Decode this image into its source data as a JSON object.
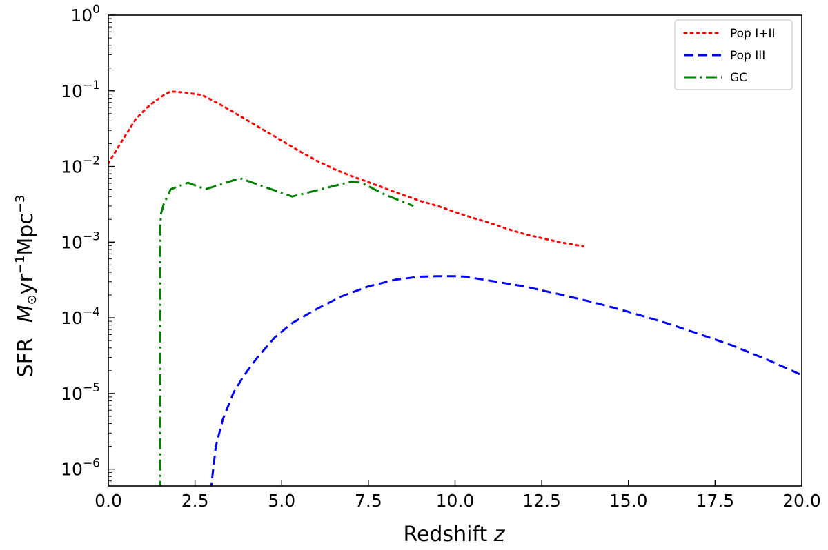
{
  "chart_data": {
    "type": "line",
    "xlabel": "Redshift",
    "xlabel_var": "z",
    "ylabel": "SFR",
    "ylabel_units": {
      "M": "M",
      "sun": "⊙",
      "yr": "yr",
      "yr_exp": "−1",
      "mpc": "Mpc",
      "mpc_exp": "−3"
    },
    "xlim": [
      0,
      20
    ],
    "ylim": [
      6e-07,
      1
    ],
    "yscale": "log",
    "x_ticks": [
      "0.0",
      "2.5",
      "5.0",
      "7.5",
      "10.0",
      "12.5",
      "15.0",
      "17.5",
      "20.0"
    ],
    "y_ticks": [
      {
        "base": "10",
        "exp": "0"
      },
      {
        "base": "10",
        "exp": "−1"
      },
      {
        "base": "10",
        "exp": "−2"
      },
      {
        "base": "10",
        "exp": "−3"
      },
      {
        "base": "10",
        "exp": "−4"
      },
      {
        "base": "10",
        "exp": "−5"
      },
      {
        "base": "10",
        "exp": "−6"
      }
    ],
    "legend_position": "top-right",
    "series": [
      {
        "name": "Pop I+II",
        "color": "#ff0000",
        "style": "dotted",
        "x": [
          0,
          0.4,
          0.8,
          1.2,
          1.6,
          1.8,
          2.2,
          2.7,
          3.0,
          3.5,
          4.0,
          4.5,
          5.0,
          5.5,
          6.0,
          6.5,
          7.0,
          7.5,
          8.0,
          8.5,
          9.0,
          9.5,
          10.0,
          10.5,
          11.0,
          11.5,
          12.0,
          12.5,
          13.0,
          13.7
        ],
        "y": [
          0.011,
          0.022,
          0.043,
          0.065,
          0.088,
          0.098,
          0.095,
          0.088,
          0.075,
          0.056,
          0.041,
          0.03,
          0.022,
          0.016,
          0.012,
          0.0093,
          0.0075,
          0.0062,
          0.0051,
          0.0042,
          0.0035,
          0.003,
          0.0025,
          0.0021,
          0.0018,
          0.0015,
          0.00128,
          0.00113,
          0.001,
          0.00088
        ]
      },
      {
        "name": "Pop III",
        "color": "#0000ff",
        "style": "dashed",
        "x": [
          2.95,
          3.1,
          3.3,
          3.6,
          3.9,
          4.3,
          4.8,
          5.3,
          6.0,
          6.7,
          7.5,
          8.3,
          9.0,
          9.5,
          10.0,
          10.3,
          11.0,
          12.0,
          13.0,
          14.0,
          15.0,
          16.0,
          17.0,
          18.0,
          19.0,
          20.0
        ],
        "y": [
          5e-07,
          2e-06,
          4.5e-06,
          1e-05,
          1.7e-05,
          3e-05,
          5.5e-05,
          8.5e-05,
          0.00013,
          0.00019,
          0.00026,
          0.00032,
          0.00035,
          0.000355,
          0.000355,
          0.00035,
          0.00031,
          0.00026,
          0.000205,
          0.00016,
          0.00012,
          8.8e-05,
          6.2e-05,
          4.3e-05,
          2.8e-05,
          1.75e-05
        ]
      },
      {
        "name": "GC",
        "color": "#008000",
        "style": "dashdot",
        "x": [
          1.5,
          1.5,
          1.52,
          1.6,
          1.8,
          2.3,
          2.8,
          3.8,
          5.3,
          7.0,
          7.3,
          8.0,
          8.8
        ],
        "y": [
          5e-07,
          0.0017,
          0.0024,
          0.0032,
          0.005,
          0.0061,
          0.005,
          0.007,
          0.004,
          0.0063,
          0.0061,
          0.0042,
          0.003
        ]
      }
    ]
  }
}
